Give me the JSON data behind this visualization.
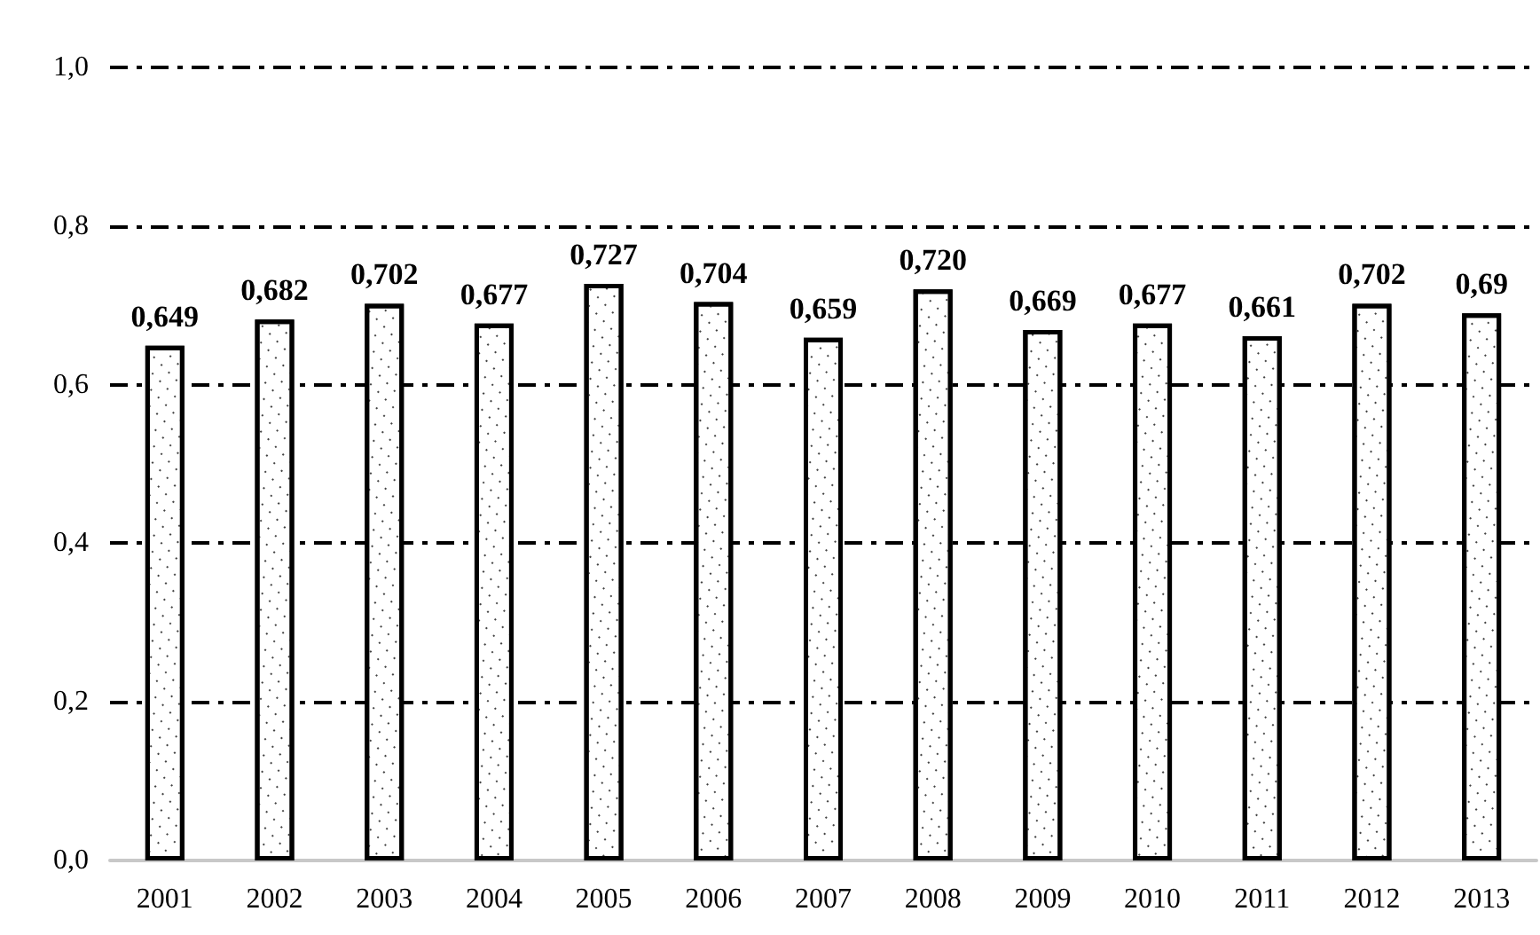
{
  "chart_data": {
    "type": "bar",
    "categories": [
      "2001",
      "2002",
      "2003",
      "2004",
      "2005",
      "2006",
      "2007",
      "2008",
      "2009",
      "2010",
      "2011",
      "2012",
      "2013"
    ],
    "values": [
      0.649,
      0.682,
      0.702,
      0.677,
      0.727,
      0.704,
      0.659,
      0.72,
      0.669,
      0.677,
      0.661,
      0.702,
      0.69
    ],
    "value_labels": [
      "0,649",
      "0,682",
      "0,702",
      "0,677",
      "0,727",
      "0,704",
      "0,659",
      "0,720",
      "0,669",
      "0,677",
      "0,661",
      "0,702",
      "0,69"
    ],
    "color": "#ffffff",
    "ylim": [
      0,
      1
    ],
    "yticks": [
      {
        "value": 0,
        "label": "0,0"
      },
      {
        "value": 0.2,
        "label": "0,2"
      },
      {
        "value": 0.4,
        "label": "0,4"
      },
      {
        "value": 0.6,
        "label": "0,6"
      },
      {
        "value": 0.8,
        "label": "0,8"
      },
      {
        "value": 1,
        "label": "1,0"
      }
    ],
    "grid": "y"
  }
}
